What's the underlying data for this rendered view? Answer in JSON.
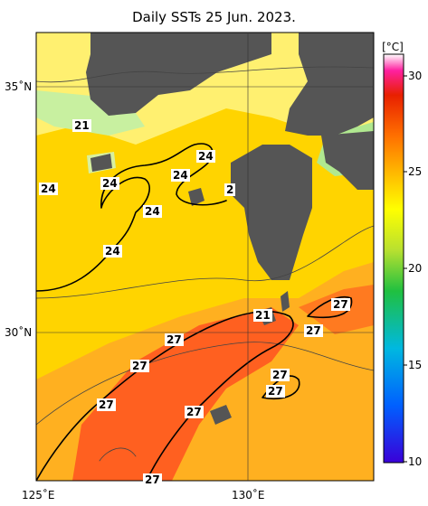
{
  "title": "Daily SSTs 25 Jun. 2023.",
  "axes": {
    "lat_labels": [
      {
        "text": "35˚N",
        "value": 35
      },
      {
        "text": "30˚N",
        "value": 30
      }
    ],
    "lon_labels": [
      {
        "text": "125˚E",
        "value": 125
      },
      {
        "text": "130˚E",
        "value": 130
      }
    ]
  },
  "colorbar": {
    "unit": "[°C]",
    "min": 10,
    "max": 31,
    "ticks": [
      {
        "text": "30",
        "value": 30
      },
      {
        "text": "25",
        "value": 25
      },
      {
        "text": "20",
        "value": 20
      },
      {
        "text": "15",
        "value": 15
      },
      {
        "text": "10",
        "value": 10
      }
    ],
    "colors": [
      "#3a00d8",
      "#0060ff",
      "#00b8e0",
      "#20c040",
      "#b8e030",
      "#ffff00",
      "#ffc000",
      "#ff7000",
      "#e82000",
      "#ff20a0",
      "#ffffff"
    ]
  },
  "contour_labels": [
    "21",
    "24",
    "24",
    "24",
    "24",
    "24",
    "24",
    "2",
    "21",
    "27",
    "27",
    "27",
    "27",
    "27",
    "27",
    "27",
    "27",
    "27"
  ],
  "colors": {
    "land": "#555555",
    "cool_water": "#c8f0a0",
    "warm_yellow": "#ffd400",
    "orange": "#ff9a20",
    "red": "#ff5a20"
  }
}
